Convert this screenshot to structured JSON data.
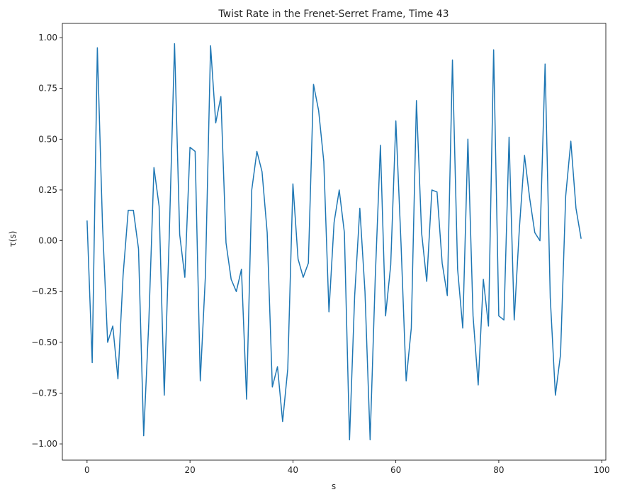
{
  "chart_data": {
    "type": "line",
    "title": "Twist Rate in the Frenet-Serret Frame, Time 43",
    "xlabel": "s",
    "ylabel": "τ(s)",
    "xlim": [
      -4.8,
      100.8
    ],
    "ylim": [
      -1.08,
      1.07
    ],
    "grid": false,
    "x_ticks": [
      0,
      20,
      40,
      60,
      80,
      100
    ],
    "y_ticks": [
      -1.0,
      -0.75,
      -0.5,
      -0.25,
      0.0,
      0.25,
      0.5,
      0.75,
      1.0
    ],
    "x_tick_labels": [
      "0",
      "20",
      "40",
      "60",
      "80",
      "100"
    ],
    "y_tick_labels": [
      "−1.00",
      "−0.75",
      "−0.50",
      "−0.25",
      "0.00",
      "0.25",
      "0.50",
      "0.75",
      "1.00"
    ],
    "series": [
      {
        "color": "#1f77b4",
        "x": [
          0,
          1,
          2,
          3,
          4,
          5,
          6,
          7,
          8,
          9,
          10,
          11,
          12,
          13,
          14,
          15,
          16,
          17,
          18,
          19,
          20,
          21,
          22,
          23,
          24,
          25,
          26,
          27,
          28,
          29,
          30,
          31,
          32,
          33,
          34,
          35,
          36,
          37,
          38,
          39,
          40,
          41,
          42,
          43,
          44,
          45,
          46,
          47,
          48,
          49,
          50,
          51,
          52,
          53,
          54,
          55,
          56,
          57,
          58,
          59,
          60,
          61,
          62,
          63,
          64,
          65,
          66,
          67,
          68,
          69,
          70,
          71,
          72,
          73,
          74,
          75,
          76,
          77,
          78,
          79,
          80,
          81,
          82,
          83,
          84,
          85,
          86,
          87,
          88,
          89,
          90,
          91,
          92,
          93,
          94,
          95,
          96
        ],
        "values": [
          0.1,
          -0.6,
          0.95,
          0.08,
          -0.5,
          -0.42,
          -0.68,
          -0.17,
          0.15,
          0.15,
          -0.04,
          -0.96,
          -0.4,
          0.36,
          0.17,
          -0.76,
          0.05,
          0.97,
          0.03,
          -0.18,
          0.46,
          0.44,
          -0.69,
          -0.17,
          0.96,
          0.58,
          0.71,
          -0.01,
          -0.19,
          -0.25,
          -0.14,
          -0.78,
          0.25,
          0.44,
          0.34,
          0.04,
          -0.72,
          -0.62,
          -0.89,
          -0.63,
          0.28,
          -0.09,
          -0.18,
          -0.11,
          0.77,
          0.64,
          0.39,
          -0.35,
          0.09,
          0.25,
          0.04,
          -0.98,
          -0.27,
          0.16,
          -0.25,
          -0.98,
          -0.18,
          0.47,
          -0.37,
          -0.12,
          0.59,
          -0.01,
          -0.69,
          -0.43,
          0.69,
          0.04,
          -0.2,
          0.25,
          0.24,
          -0.11,
          -0.27,
          0.89,
          -0.14,
          -0.43,
          0.5,
          -0.37,
          -0.71,
          -0.19,
          -0.42,
          0.94,
          -0.37,
          -0.39,
          0.51,
          -0.39,
          0.06,
          0.42,
          0.21,
          0.04,
          0.0,
          0.87,
          -0.28,
          -0.76,
          -0.56,
          0.22,
          0.49,
          0.16,
          0.01
        ]
      }
    ]
  }
}
